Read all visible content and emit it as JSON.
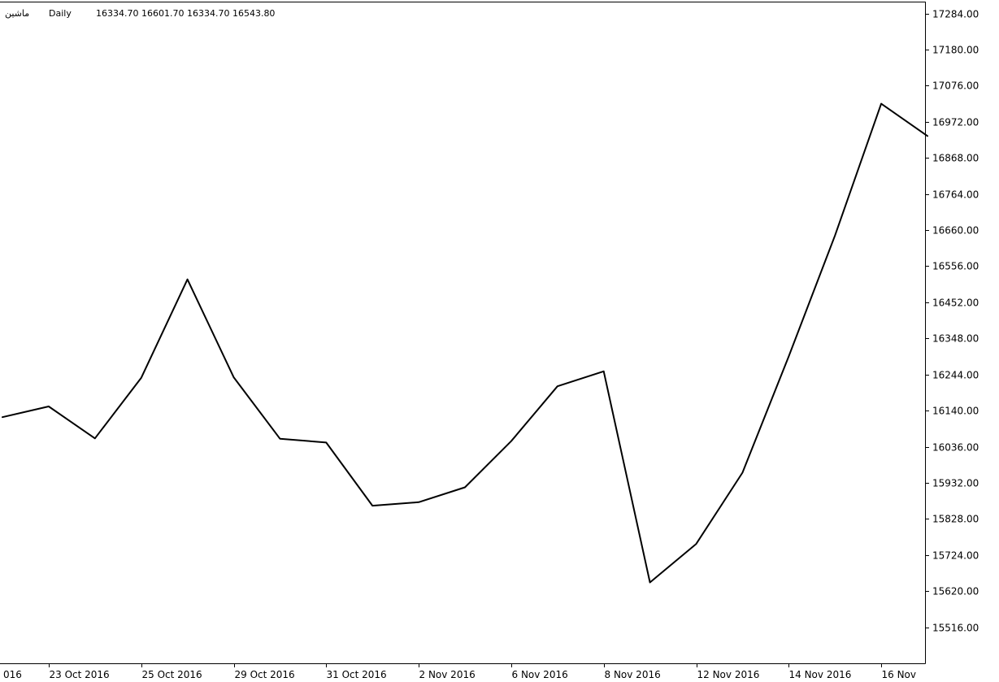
{
  "header": {
    "symbol": "ماشین",
    "timeframe": "Daily",
    "ohlc": "16334.70 16601.70 16334.70 16543.80"
  },
  "chart_data": {
    "type": "line",
    "title": "",
    "xlabel": "",
    "ylabel": "",
    "ylim": [
      15412,
      17318
    ],
    "y_ticks": [
      17284,
      17180,
      17076,
      16972,
      16868,
      16764,
      16660,
      16556,
      16452,
      16348,
      16244,
      16140,
      16036,
      15932,
      15828,
      15724,
      15620,
      15516
    ],
    "y_tick_labels": [
      "17284.00",
      "17180.00",
      "17076.00",
      "16972.00",
      "16868.00",
      "16764.00",
      "16660.00",
      "16556.00",
      "16452.00",
      "16348.00",
      "16244.00",
      "16140.00",
      "16036.00",
      "15932.00",
      "15828.00",
      "15724.00",
      "15620.00",
      "15516.00"
    ],
    "x_tick_labels": [
      "016",
      "23 Oct 2016",
      "25 Oct 2016",
      "29 Oct 2016",
      "31 Oct 2016",
      "2 Nov 2016",
      "6 Nov 2016",
      "8 Nov 2016",
      "12 Nov 2016",
      "14 Nov 2016",
      "16 Nov"
    ],
    "x_tick_index": [
      0,
      1,
      3,
      5,
      7,
      9,
      11,
      13,
      15,
      17,
      19
    ],
    "grid": false,
    "series": [
      {
        "values": [
          16121,
          16152,
          16060,
          16234,
          16518,
          16236,
          16059,
          16048,
          15866,
          15876,
          15919,
          16052,
          16210,
          16253,
          15645,
          15756,
          15961,
          16296,
          16644,
          17024,
          16931
        ]
      }
    ]
  }
}
